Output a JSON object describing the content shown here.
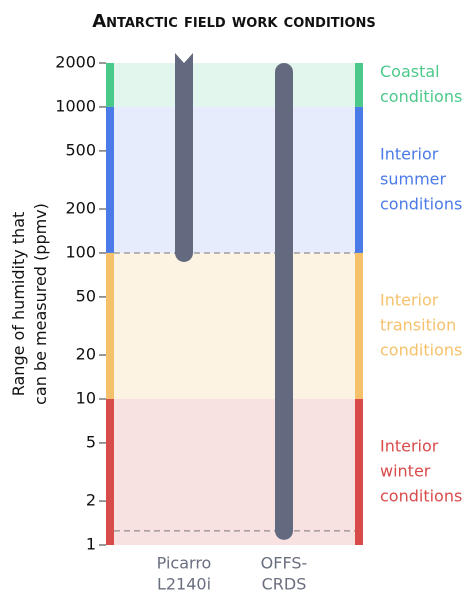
{
  "chart_data": {
    "type": "range_bar",
    "title": "Antarctic field work conditions",
    "ylabel": [
      "Range of humidity that",
      "can be measured (ppmv)"
    ],
    "ylim": [
      1,
      2000
    ],
    "log_scale": true,
    "yticks": [
      1,
      2,
      5,
      10,
      20,
      50,
      100,
      200,
      500,
      1000,
      2000
    ],
    "categories": [
      [
        "Picarro",
        "L2140i"
      ],
      [
        "OFFS-",
        "CRDS"
      ]
    ],
    "low": [
      100,
      1.25
    ],
    "high": [
      2000,
      2000
    ],
    "open_top": [
      true,
      false
    ],
    "color": "#636a80",
    "bands": [
      {
        "name": [
          "Coastal",
          "conditions"
        ],
        "range": [
          1000,
          2000
        ],
        "color": "#4bc98a",
        "fill": "#e3f6ee"
      },
      {
        "name": [
          "Interior",
          "summer",
          "conditions"
        ],
        "range": [
          100,
          1000
        ],
        "color": "#4b7be8",
        "fill": "#e6ecfb"
      },
      {
        "name": [
          "Interior",
          "transition",
          "conditions"
        ],
        "range": [
          10,
          100
        ],
        "color": "#f5c26b",
        "fill": "#fdf3e2"
      },
      {
        "name": [
          "Interior",
          "winter",
          "conditions"
        ],
        "range": [
          1,
          10
        ],
        "color": "#d94b4b",
        "fill": "#f8e1e1"
      }
    ]
  }
}
